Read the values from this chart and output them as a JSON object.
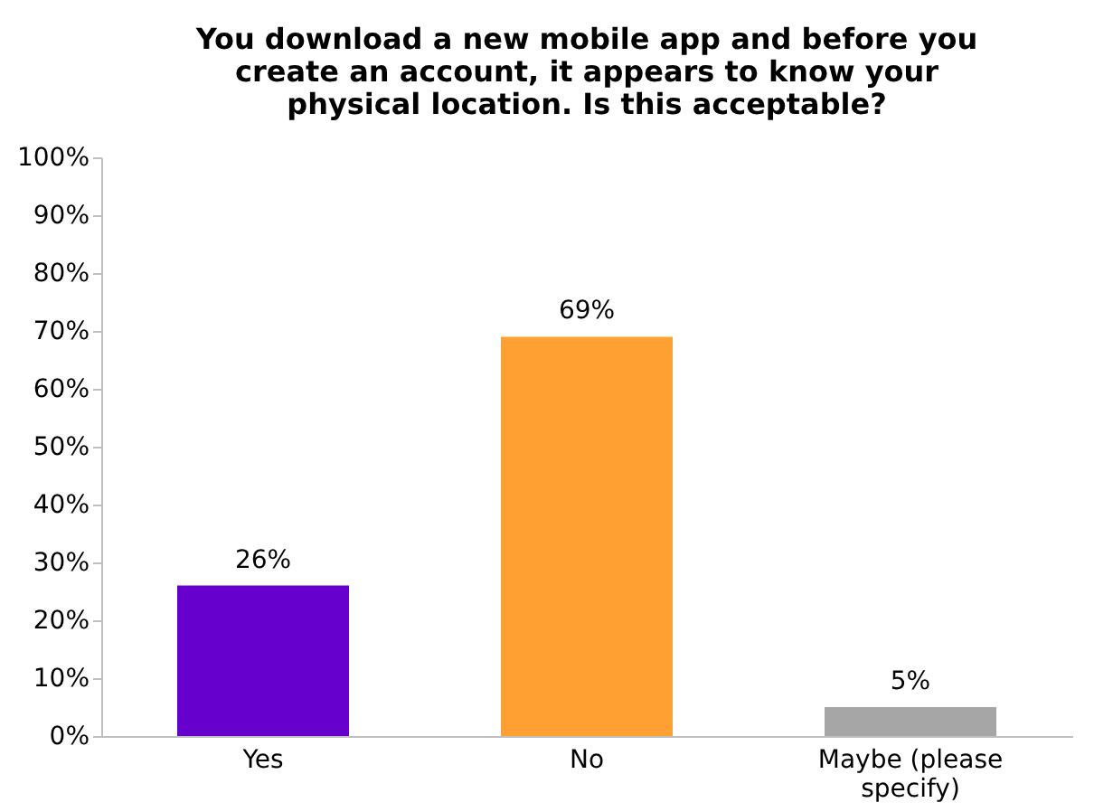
{
  "chart_data": {
    "type": "bar",
    "title": "You download a new mobile app and before you create an account, it appears to know your physical location. Is this acceptable?",
    "categories": [
      "Yes",
      "No",
      "Maybe (please specify)"
    ],
    "values": [
      26,
      69,
      5
    ],
    "colors": [
      "#6600cc",
      "#ffa033",
      "#a6a6a6"
    ],
    "value_labels": [
      "26%",
      "69%",
      "5%"
    ],
    "ylim": [
      0,
      100
    ],
    "yticks": [
      {
        "value": 0,
        "label": "0%"
      },
      {
        "value": 10,
        "label": "10%"
      },
      {
        "value": 20,
        "label": "20%"
      },
      {
        "value": 30,
        "label": "30%"
      },
      {
        "value": 40,
        "label": "40%"
      },
      {
        "value": 50,
        "label": "50%"
      },
      {
        "value": 60,
        "label": "60%"
      },
      {
        "value": 70,
        "label": "70%"
      },
      {
        "value": 80,
        "label": "80%"
      },
      {
        "value": 90,
        "label": "90%"
      },
      {
        "value": 100,
        "label": "100%"
      }
    ],
    "grid": false
  }
}
